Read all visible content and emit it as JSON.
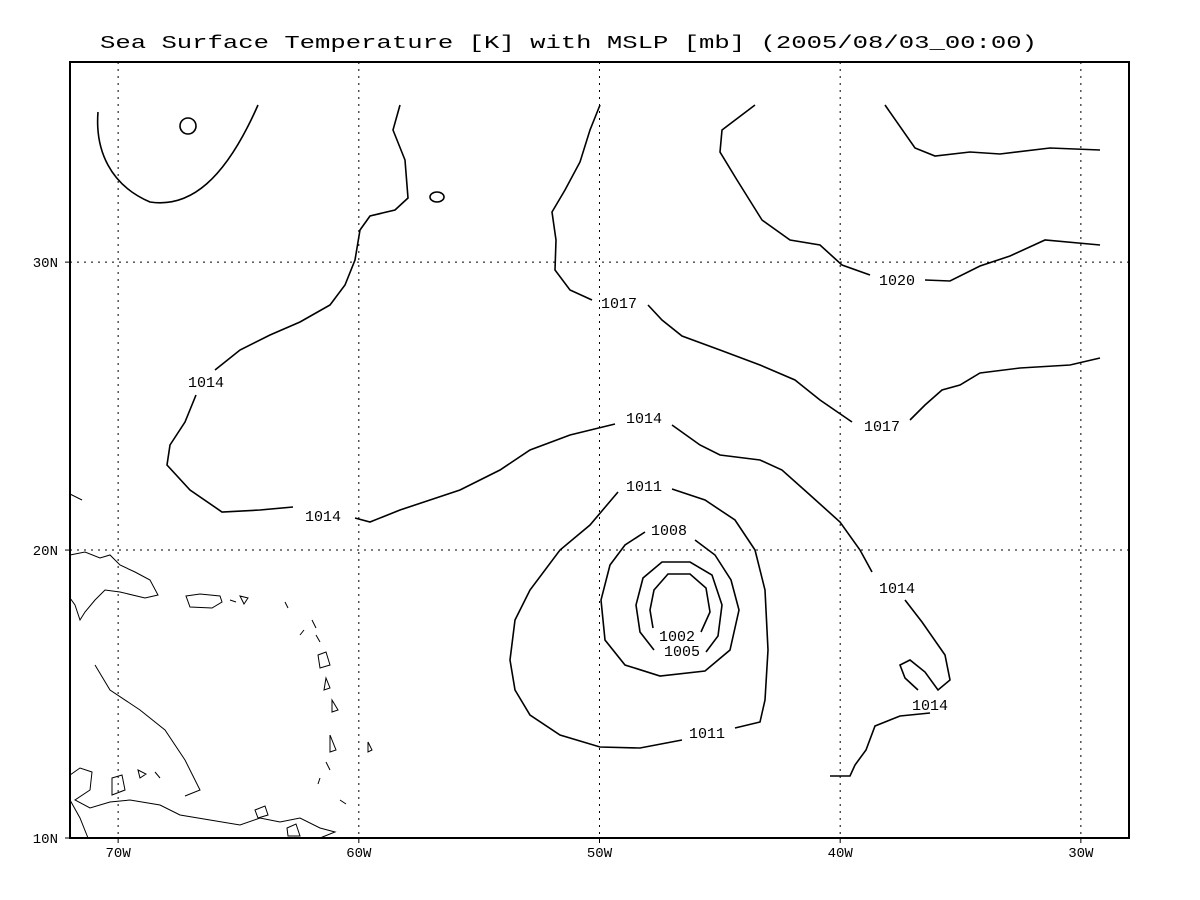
{
  "title": "Sea Surface Temperature [K] with MSLP [mb] (2005/08/03_00:00)",
  "map": {
    "lonlim": [
      -72,
      -28
    ],
    "latlim": [
      10,
      36.95
    ],
    "lon_ticks": [
      {
        "value": -70,
        "label": "70W"
      },
      {
        "value": -60,
        "label": "60W"
      },
      {
        "value": -50,
        "label": "50W"
      },
      {
        "value": -40,
        "label": "40W"
      },
      {
        "value": -30,
        "label": "30W"
      }
    ],
    "lat_ticks": [
      {
        "value": 10,
        "label": "10N"
      },
      {
        "value": 20,
        "label": "20N"
      },
      {
        "value": 30,
        "label": "30N"
      }
    ],
    "grid": true,
    "contour_labels": [
      1020,
      1017,
      1017,
      1014,
      1014,
      1014,
      1014,
      1011,
      1008,
      1002,
      1005,
      1011,
      1014
    ]
  }
}
